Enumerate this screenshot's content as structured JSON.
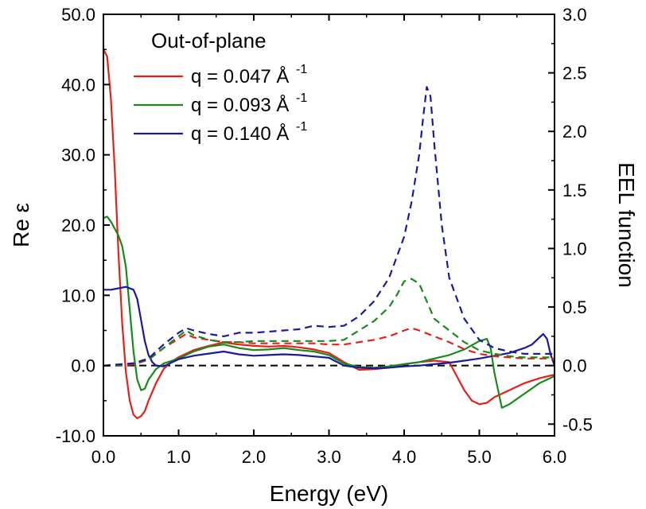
{
  "chart_data": {
    "type": "line",
    "xlabel": "Energy (eV)",
    "ylabel_left": "Re ε",
    "ylabel_right": "EEL function",
    "xlim": [
      0,
      6
    ],
    "ylim_left": [
      -10,
      50
    ],
    "ylim_right": [
      -0.6,
      3.0
    ],
    "xticks": [
      "0.0",
      "1.0",
      "2.0",
      "3.0",
      "4.0",
      "5.0",
      "6.0"
    ],
    "yticks_left": [
      "-10.0",
      "0.0",
      "10.0",
      "20.0",
      "30.0",
      "40.0",
      "50.0"
    ],
    "yticks_right": [
      "-0.5",
      "0.0",
      "0.5",
      "1.0",
      "1.5",
      "2.0",
      "2.5",
      "3.0"
    ],
    "legend": {
      "title": "Out-of-plane",
      "entries": [
        {
          "label": "q = 0.047 Å",
          "sup": "-1",
          "color": "#e8201a"
        },
        {
          "label": "q = 0.093 Å",
          "sup": "-1",
          "color": "#1a8a1a"
        },
        {
          "label": "q = 0.140 Å",
          "sup": "-1",
          "color": "#1a1a9c"
        }
      ]
    },
    "zero_line": {
      "axis": "left",
      "value": 0,
      "style": "dashed",
      "color": "#000000"
    },
    "series": [
      {
        "name": "Re ε, q = 0.047",
        "axis": "left",
        "style": "solid",
        "color": "#e8201a",
        "x": [
          0.0,
          0.05,
          0.1,
          0.15,
          0.2,
          0.25,
          0.3,
          0.35,
          0.4,
          0.45,
          0.5,
          0.55,
          0.6,
          0.7,
          0.8,
          0.9,
          1.0,
          1.2,
          1.4,
          1.6,
          1.8,
          2.0,
          2.2,
          2.4,
          2.6,
          2.8,
          3.0,
          3.2,
          3.4,
          3.6,
          3.8,
          4.0,
          4.2,
          4.4,
          4.6,
          4.7,
          4.8,
          4.9,
          5.0,
          5.1,
          5.2,
          5.4,
          5.6,
          5.8,
          6.0
        ],
        "y": [
          45,
          44,
          38,
          28,
          16,
          6,
          -1,
          -5,
          -7,
          -7.5,
          -7.2,
          -6.5,
          -5,
          -2.5,
          -0.5,
          0.5,
          1.2,
          2.2,
          2.8,
          3.3,
          3.0,
          2.8,
          2.7,
          2.8,
          2.6,
          2.3,
          1.8,
          0.5,
          -0.6,
          -0.5,
          -0.3,
          0.2,
          0.5,
          0.7,
          0.5,
          -1.5,
          -3.5,
          -5.0,
          -5.5,
          -5.3,
          -4.5,
          -3.5,
          -2.5,
          -1.8,
          -1.3
        ]
      },
      {
        "name": "Re ε, q = 0.093",
        "axis": "left",
        "style": "solid",
        "color": "#1a8a1a",
        "x": [
          0.0,
          0.05,
          0.1,
          0.15,
          0.2,
          0.25,
          0.3,
          0.35,
          0.4,
          0.45,
          0.5,
          0.55,
          0.6,
          0.7,
          0.8,
          1.0,
          1.2,
          1.4,
          1.6,
          1.8,
          2.0,
          2.2,
          2.4,
          2.6,
          2.8,
          3.0,
          3.2,
          3.4,
          3.6,
          3.8,
          4.0,
          4.2,
          4.4,
          4.6,
          4.8,
          5.0,
          5.1,
          5.15,
          5.2,
          5.3,
          5.4,
          5.6,
          5.8,
          6.0
        ],
        "y": [
          21,
          21.2,
          20.5,
          19.5,
          18.5,
          17,
          14,
          8,
          2,
          -2,
          -3.5,
          -3.3,
          -2,
          -0.5,
          0.3,
          1,
          2,
          2.7,
          3.0,
          2.5,
          2.2,
          2.3,
          2.5,
          2.2,
          2.0,
          1.5,
          0.3,
          -0.2,
          -0.3,
          -0.1,
          0.2,
          0.5,
          1.0,
          1.5,
          2.3,
          3.5,
          3.8,
          2.5,
          -1,
          -6,
          -5.5,
          -4,
          -2.5,
          -1.5
        ]
      },
      {
        "name": "Re ε, q = 0.140",
        "axis": "left",
        "style": "solid",
        "color": "#1a1a9c",
        "x": [
          0.0,
          0.1,
          0.2,
          0.3,
          0.4,
          0.45,
          0.5,
          0.55,
          0.6,
          0.65,
          0.7,
          0.8,
          0.9,
          1.0,
          1.2,
          1.4,
          1.6,
          1.8,
          2.0,
          2.2,
          2.4,
          2.6,
          2.8,
          3.0,
          3.2,
          3.4,
          3.6,
          3.8,
          4.0,
          4.2,
          4.4,
          4.6,
          4.8,
          5.0,
          5.2,
          5.4,
          5.6,
          5.7,
          5.8,
          5.85,
          5.9,
          5.95,
          6.0
        ],
        "y": [
          10.8,
          10.8,
          11.0,
          11.2,
          10.8,
          9.5,
          6.5,
          3.5,
          1.5,
          0.5,
          0.0,
          -0.1,
          0.4,
          0.9,
          1.4,
          1.7,
          2.0,
          1.6,
          1.4,
          1.5,
          1.6,
          1.5,
          1.3,
          1.1,
          0.0,
          -0.3,
          -0.4,
          -0.3,
          -0.1,
          0.0,
          0.2,
          0.4,
          0.7,
          1.0,
          1.4,
          1.8,
          2.5,
          3.0,
          4.0,
          4.5,
          3.8,
          1.5,
          0.0
        ]
      },
      {
        "name": "EEL, q = 0.047",
        "axis": "right",
        "style": "dashed",
        "color": "#e8201a",
        "x": [
          0.0,
          0.2,
          0.4,
          0.6,
          0.8,
          1.0,
          1.1,
          1.2,
          1.4,
          1.6,
          1.8,
          2.0,
          2.2,
          2.4,
          2.6,
          2.8,
          3.0,
          3.2,
          3.4,
          3.6,
          3.8,
          4.0,
          4.1,
          4.2,
          4.4,
          4.6,
          4.8,
          5.0,
          5.2,
          5.4,
          5.6,
          5.8,
          6.0
        ],
        "y": [
          0.0,
          0.0,
          0.01,
          0.05,
          0.15,
          0.23,
          0.27,
          0.24,
          0.22,
          0.2,
          0.2,
          0.19,
          0.19,
          0.19,
          0.19,
          0.19,
          0.18,
          0.18,
          0.2,
          0.22,
          0.25,
          0.3,
          0.32,
          0.3,
          0.25,
          0.2,
          0.14,
          0.1,
          0.08,
          0.07,
          0.06,
          0.06,
          0.06
        ]
      },
      {
        "name": "EEL, q = 0.093",
        "axis": "right",
        "style": "dashed",
        "color": "#1a8a1a",
        "x": [
          0.0,
          0.2,
          0.4,
          0.6,
          0.8,
          1.0,
          1.1,
          1.2,
          1.4,
          1.6,
          1.8,
          2.0,
          2.2,
          2.4,
          2.6,
          2.8,
          3.0,
          3.2,
          3.4,
          3.6,
          3.8,
          3.9,
          4.0,
          4.1,
          4.2,
          4.3,
          4.4,
          4.6,
          4.8,
          5.0,
          5.2,
          5.4,
          5.6,
          5.8,
          6.0
        ],
        "y": [
          0.0,
          0.0,
          0.02,
          0.05,
          0.15,
          0.25,
          0.3,
          0.26,
          0.22,
          0.2,
          0.2,
          0.21,
          0.21,
          0.21,
          0.21,
          0.21,
          0.21,
          0.22,
          0.3,
          0.38,
          0.5,
          0.6,
          0.72,
          0.74,
          0.7,
          0.55,
          0.4,
          0.3,
          0.2,
          0.13,
          0.1,
          0.08,
          0.07,
          0.07,
          0.07
        ]
      },
      {
        "name": "EEL, q = 0.140",
        "axis": "right",
        "style": "dashed",
        "color": "#1a1a9c",
        "x": [
          0.0,
          0.2,
          0.4,
          0.6,
          0.8,
          1.0,
          1.1,
          1.2,
          1.4,
          1.6,
          1.8,
          2.0,
          2.2,
          2.4,
          2.6,
          2.8,
          3.0,
          3.2,
          3.4,
          3.6,
          3.8,
          4.0,
          4.1,
          4.2,
          4.25,
          4.3,
          4.35,
          4.4,
          4.5,
          4.6,
          4.8,
          5.0,
          5.2,
          5.4,
          5.6,
          5.8,
          6.0
        ],
        "y": [
          0.0,
          0.01,
          0.02,
          0.06,
          0.18,
          0.28,
          0.32,
          0.3,
          0.27,
          0.25,
          0.28,
          0.28,
          0.29,
          0.3,
          0.31,
          0.34,
          0.33,
          0.34,
          0.42,
          0.55,
          0.75,
          1.1,
          1.4,
          1.8,
          2.1,
          2.38,
          2.3,
          1.9,
          1.2,
          0.75,
          0.4,
          0.22,
          0.15,
          0.12,
          0.1,
          0.1,
          0.1
        ]
      }
    ]
  }
}
